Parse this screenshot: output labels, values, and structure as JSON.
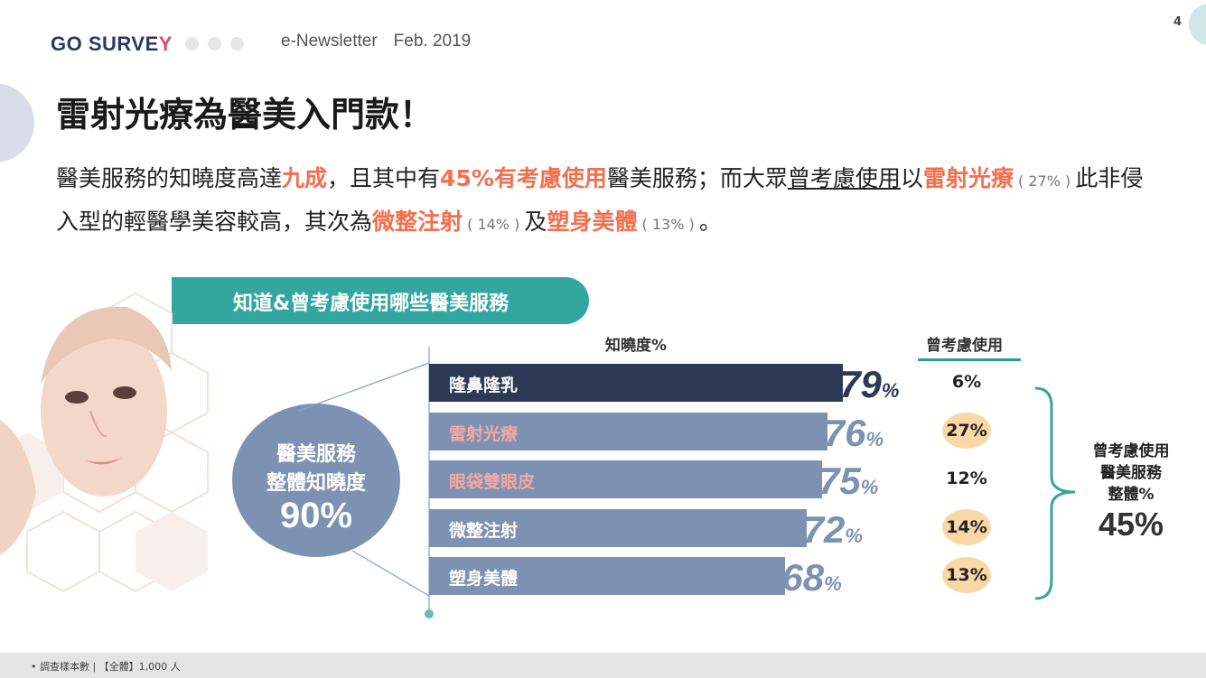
{
  "header": {
    "logo_pre": "GO SURV",
    "logo_e": "E",
    "logo_y": "Y",
    "newsletter": "e-Newsletter",
    "date": "Feb. 2019",
    "page_number": "4"
  },
  "title": "雷射光療為醫美入門款！",
  "description": {
    "p1": "醫美服務的知曉度高達",
    "h1": "九成",
    "p2": "，且其中有",
    "h2": "45%有考慮使用",
    "p3": "醫美服務；而大眾",
    "u1": "曾考慮使用",
    "p4": "以",
    "h3": "雷射光療",
    "s1": " ( 27% ) ",
    "p5": "此非侵入型的輕醫學美容較高，其次為",
    "h4": "微整注射",
    "s2": " ( 14% ) ",
    "p6": "及",
    "h5": "塑身美體",
    "s3": " ( 13% ) ",
    "p7": "。"
  },
  "banner": "知道&曾考慮使用哪些醫美服務",
  "bubble": {
    "line1": "醫美服務",
    "line2": "整體知曉度",
    "value": "90%"
  },
  "colors": {
    "bar_dark": "#2e3a55",
    "bar_light": "#7d92b3",
    "label_pink": "#f3a8a0",
    "teal": "#33a6a0",
    "circle_highlight": "#f9d8a8"
  },
  "chart_data": {
    "type": "bar",
    "orientation": "horizontal",
    "xlabel": "知曉度%",
    "categories": [
      "隆鼻隆乳",
      "雷射光療",
      "眼袋雙眼皮",
      "微整注射",
      "塑身美體"
    ],
    "series": [
      {
        "name": "知曉度%",
        "values": [
          79,
          76,
          75,
          72,
          68
        ]
      },
      {
        "name": "曾考慮使用",
        "values": [
          6,
          27,
          12,
          14,
          13
        ]
      }
    ],
    "value_labels": [
      "79",
      "76",
      "75",
      "72",
      "68"
    ],
    "pct_suffix": "%",
    "consider_labels": [
      "6%",
      "27%",
      "12%",
      "14%",
      "13%"
    ],
    "highlighted": [
      false,
      true,
      false,
      true,
      true
    ],
    "pink_labels": [
      false,
      true,
      true,
      false,
      false
    ]
  },
  "consider_header": "曾考慮使用",
  "side": {
    "line1": "曾考慮使用",
    "line2": "醫美服務",
    "line3": "整體%",
    "value": "45%"
  },
  "footer": "• 調查樣本數 | 【全體】1,000 人"
}
